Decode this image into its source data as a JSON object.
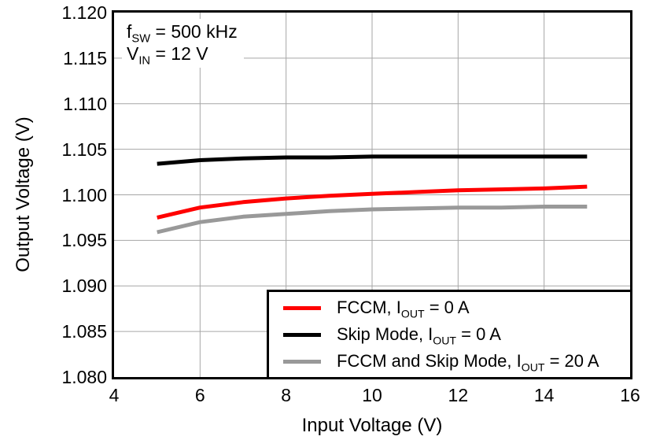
{
  "figure": {
    "background": "#ffffff",
    "frame_color": "#000000",
    "gridline_color": "#a6a6a6"
  },
  "axes": {
    "x": {
      "title": "Input Voltage (V)",
      "min": 4,
      "max": 16,
      "ticks": [
        {
          "v": 4,
          "label": "4"
        },
        {
          "v": 6,
          "label": "6"
        },
        {
          "v": 8,
          "label": "8"
        },
        {
          "v": 10,
          "label": "10"
        },
        {
          "v": 12,
          "label": "12"
        },
        {
          "v": 14,
          "label": "14"
        },
        {
          "v": 16,
          "label": "16"
        }
      ],
      "gridlines": [
        6,
        8,
        10,
        12,
        14
      ]
    },
    "y": {
      "title": "Output Voltage (V)",
      "min": 1.08,
      "max": 1.12,
      "ticks": [
        {
          "v": 1.12,
          "label": "1.120"
        },
        {
          "v": 1.115,
          "label": "1.115"
        },
        {
          "v": 1.11,
          "label": "1.110"
        },
        {
          "v": 1.105,
          "label": "1.105"
        },
        {
          "v": 1.1,
          "label": "1.100"
        },
        {
          "v": 1.095,
          "label": "1.095"
        },
        {
          "v": 1.09,
          "label": "1.090"
        },
        {
          "v": 1.085,
          "label": "1.085"
        },
        {
          "v": 1.08,
          "label": "1.080"
        }
      ],
      "gridlines": [
        1.085,
        1.09,
        1.095,
        1.1,
        1.105,
        1.11,
        1.115
      ]
    }
  },
  "annotation": {
    "line1": {
      "pre": "f",
      "sub": "SW",
      "post": " = 500 kHz"
    },
    "line2": {
      "pre": "V",
      "sub": "IN",
      "post": " = 12 V"
    }
  },
  "legend": {
    "position": "lower right",
    "items": [
      {
        "color": "#ff0000",
        "label": {
          "pre": "FCCM, I",
          "sub": "OUT",
          "post": " = 0 A"
        }
      },
      {
        "color": "#000000",
        "label": {
          "pre": "Skip Mode, I",
          "sub": "OUT",
          "post": " = 0 A"
        }
      },
      {
        "color": "#999999",
        "label": {
          "pre": "FCCM and Skip Mode, I",
          "sub": "OUT",
          "post": " = 20 A"
        }
      }
    ]
  },
  "chart_data": {
    "type": "line",
    "title": "",
    "xlabel": "Input Voltage (V)",
    "ylabel": "Output Voltage (V)",
    "xlim": [
      4,
      16
    ],
    "ylim": [
      1.08,
      1.12
    ],
    "grid": true,
    "legend_position": "lower right",
    "annotations": [
      "fSW = 500 kHz",
      "VIN = 12 V"
    ],
    "x": [
      5,
      6,
      7,
      8,
      9,
      10,
      11,
      12,
      13,
      14,
      15
    ],
    "series": [
      {
        "name": "FCCM, IOUT = 0 A",
        "color": "#ff0000",
        "line_width": 5,
        "values": [
          1.0975,
          1.0986,
          1.0992,
          1.0996,
          1.0999,
          1.1001,
          1.1003,
          1.1005,
          1.1006,
          1.1007,
          1.1009
        ]
      },
      {
        "name": "Skip Mode, IOUT = 0 A",
        "color": "#000000",
        "line_width": 5,
        "values": [
          1.1034,
          1.1038,
          1.104,
          1.1041,
          1.1041,
          1.1042,
          1.1042,
          1.1042,
          1.1042,
          1.1042,
          1.1042
        ]
      },
      {
        "name": "FCCM and Skip Mode, IOUT = 20 A",
        "color": "#999999",
        "line_width": 5,
        "values": [
          1.0959,
          1.097,
          1.0976,
          1.0979,
          1.0982,
          1.0984,
          1.0985,
          1.0986,
          1.0986,
          1.0987,
          1.0987
        ]
      }
    ]
  }
}
